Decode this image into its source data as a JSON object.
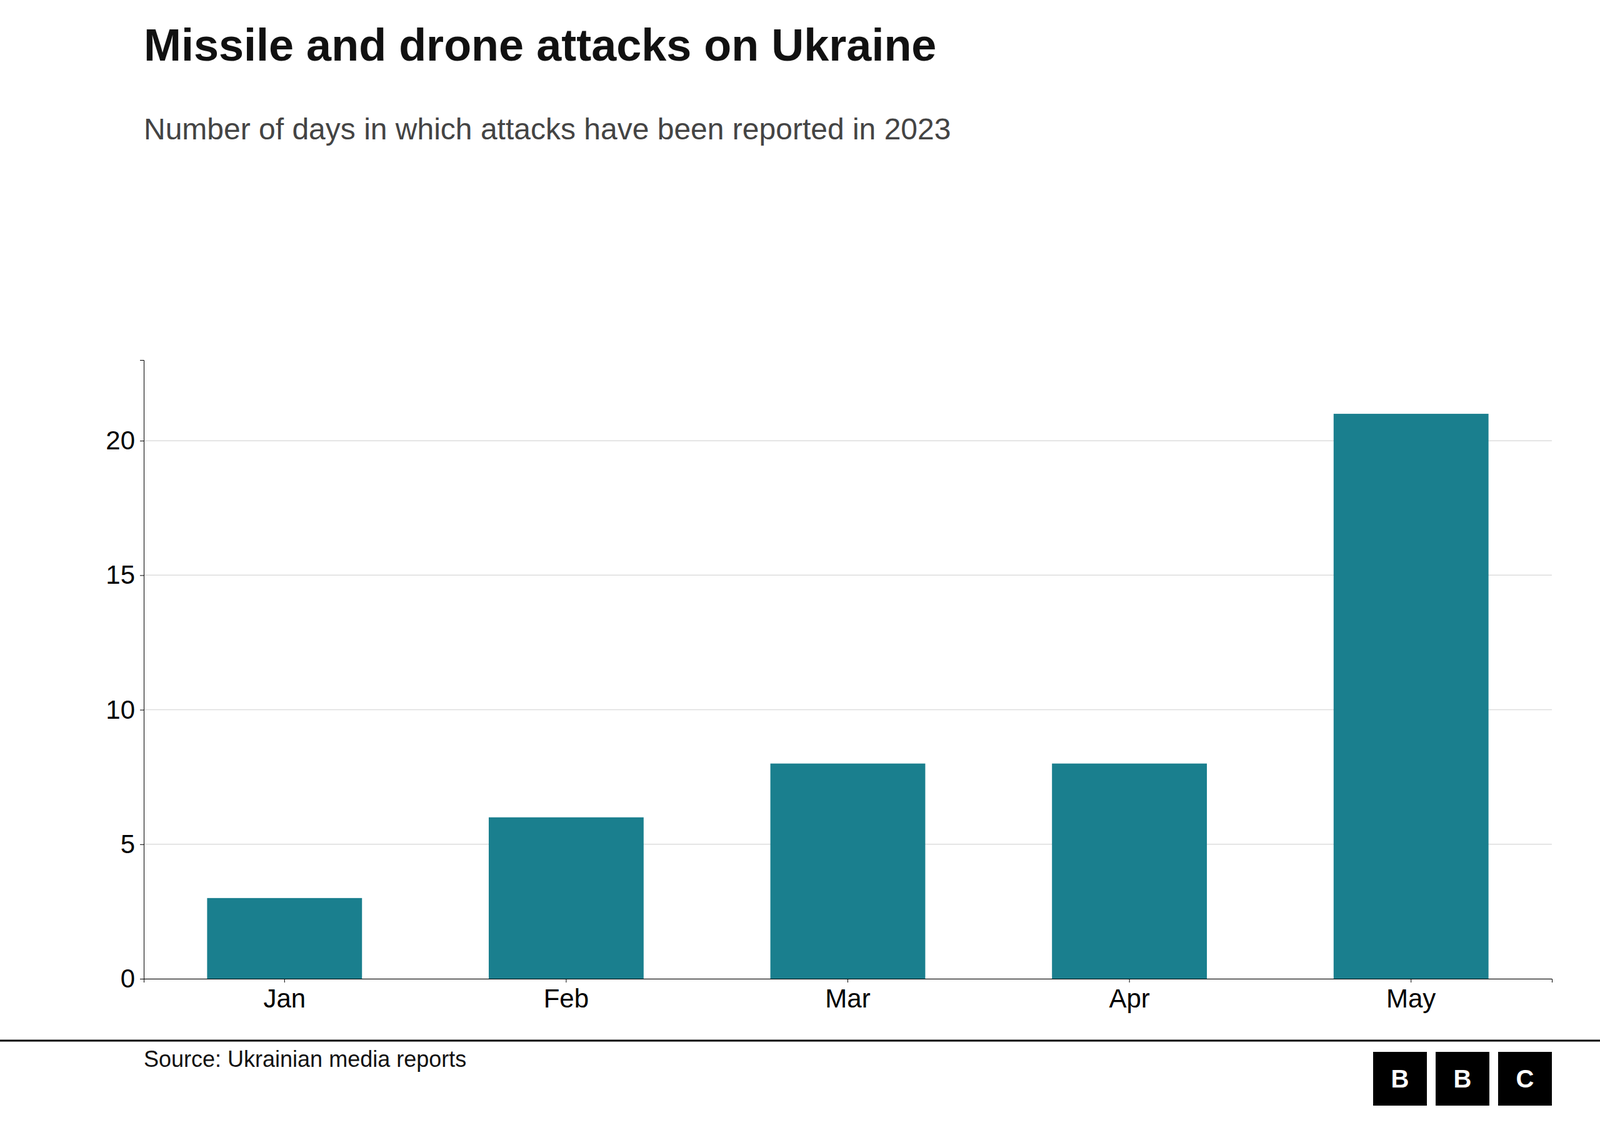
{
  "chart_data": {
    "type": "bar",
    "title": "Missile and drone attacks on Ukraine",
    "subtitle": "Number of days in which attacks have been reported in 2023",
    "categories": [
      "Jan",
      "Feb",
      "Mar",
      "Apr",
      "May"
    ],
    "values": [
      3,
      6,
      8,
      8,
      21
    ],
    "color": "#1a7f8e",
    "ylim": [
      0,
      23
    ],
    "yticks": [
      0,
      5,
      10,
      15,
      20
    ],
    "grid": true,
    "source": "Source: Ukrainian media reports",
    "logo": [
      "B",
      "B",
      "C"
    ]
  }
}
